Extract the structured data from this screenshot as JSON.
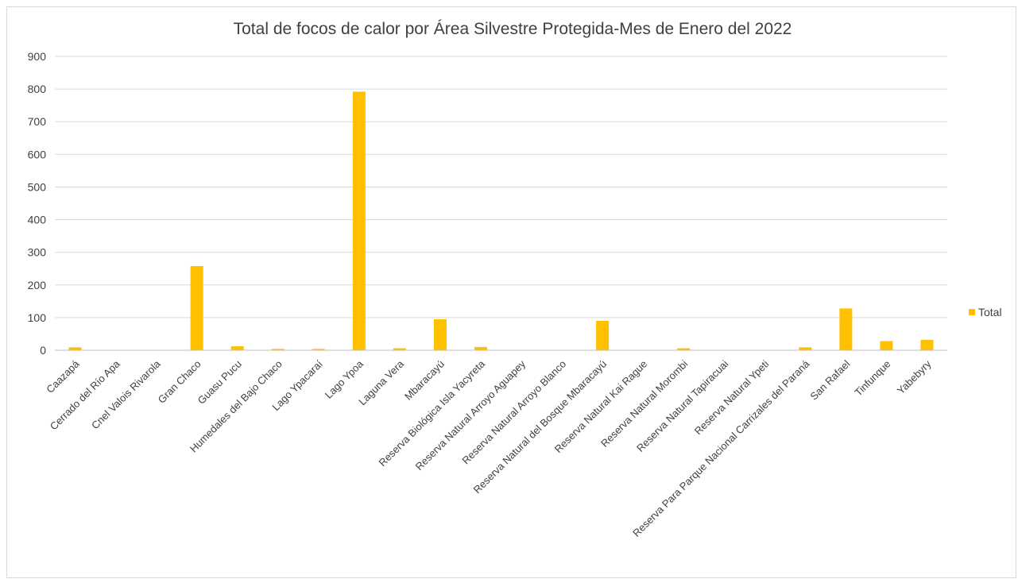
{
  "chart_data": {
    "type": "bar",
    "title": "Total de focos de calor por Área Silvestre Protegida-Mes de Enero del 2022",
    "xlabel": "",
    "ylabel": "",
    "ylim": [
      0,
      900
    ],
    "yticks": [
      0,
      100,
      200,
      300,
      400,
      500,
      600,
      700,
      800,
      900
    ],
    "grid": true,
    "legend_position": "right",
    "categories": [
      "Caazapá",
      "Cerrado del Río Apa",
      "Cnel Valois Rivarola",
      "Gran Chaco",
      "Guasu Pucu",
      "Humedales del Bajo Chaco",
      "Lago Ypacaraí",
      "Lago Ypoa",
      "Laguna Vera",
      "Mbaracayú",
      "Reserva Biológica Isla Yacyreta",
      "Reserva Natural Arroyo Aguapey",
      "Reserva Natural Arroyo Blanco",
      "Reserva Natural del Bosque Mbaracayú",
      "Reserva Natural Kai Rague",
      "Reserva Natural Morombi",
      "Reserva Natural Tapiracuai",
      "Reserva Natural Ypeti",
      "Reserva Para Parque Nacional Carrizales del Paraná",
      "San Rafael",
      "Tinfunque",
      "Yabebyry"
    ],
    "series": [
      {
        "name": "Total",
        "color": "#ffc000",
        "values": [
          9,
          1,
          1,
          258,
          12,
          4,
          4,
          792,
          6,
          95,
          10,
          1,
          1,
          90,
          1,
          6,
          1,
          1,
          9,
          128,
          28,
          32
        ]
      }
    ]
  }
}
